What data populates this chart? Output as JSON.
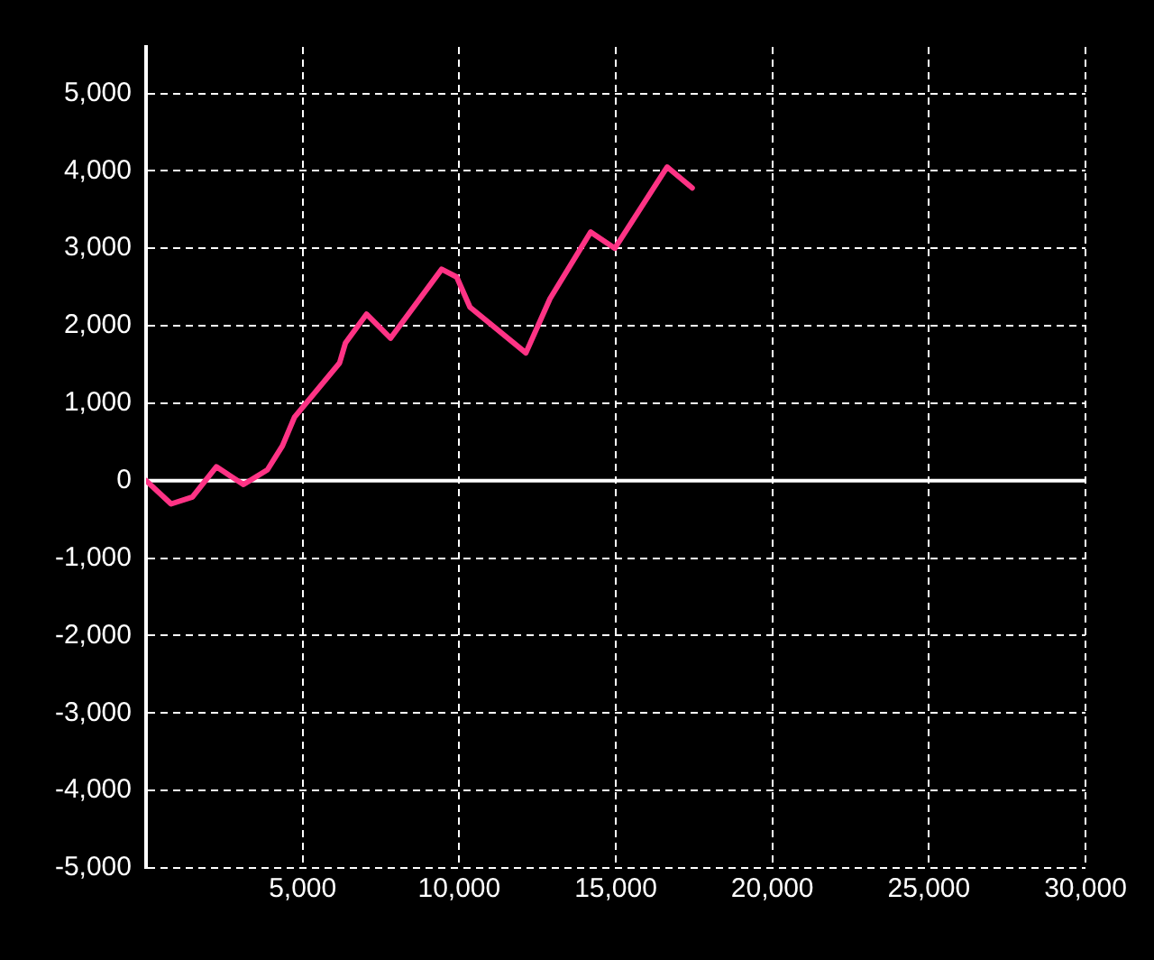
{
  "chart_data": {
    "type": "line",
    "x": [
      0,
      800,
      1480,
      2245,
      3110,
      3875,
      4355,
      4740,
      6180,
      6370,
      7040,
      7810,
      9440,
      9920,
      10345,
      12130,
      12900,
      14200,
      14970,
      16640,
      17440
    ],
    "series": [
      {
        "color": "#ff3385",
        "values": [
          0,
          -300,
          -210,
          180,
          -50,
          140,
          450,
          820,
          1520,
          1780,
          2150,
          1840,
          2730,
          2630,
          2240,
          1650,
          2350,
          3210,
          3000,
          4050,
          3780
        ]
      }
    ],
    "xlim": [
      0,
      30000
    ],
    "xticks": [
      {
        "value": 5000,
        "label": "5,000"
      },
      {
        "value": 10000,
        "label": "10,000"
      },
      {
        "value": 15000,
        "label": "15,000"
      },
      {
        "value": 20000,
        "label": "20,000"
      },
      {
        "value": 25000,
        "label": "25,000"
      },
      {
        "value": 30000,
        "label": "30,000"
      }
    ],
    "ylim": [
      -5000,
      5600
    ],
    "yticks": [
      {
        "value": -5000,
        "label": "-5,000"
      },
      {
        "value": -4000,
        "label": "-4,000"
      },
      {
        "value": -3000,
        "label": "-3,000"
      },
      {
        "value": -2000,
        "label": "-2,000"
      },
      {
        "value": -1000,
        "label": "-1,000"
      },
      {
        "value": 0,
        "label": "0"
      },
      {
        "value": 1000,
        "label": "1,000"
      },
      {
        "value": 2000,
        "label": "2,000"
      },
      {
        "value": 3000,
        "label": "3,000"
      },
      {
        "value": 4000,
        "label": "4,000"
      },
      {
        "value": 5000,
        "label": "5,000"
      }
    ],
    "ref_lines": [
      {
        "axis": "y",
        "value": 0,
        "color": "#ffffff"
      }
    ],
    "grid": true,
    "legend": false,
    "marker": "none",
    "line_style": "solid"
  }
}
